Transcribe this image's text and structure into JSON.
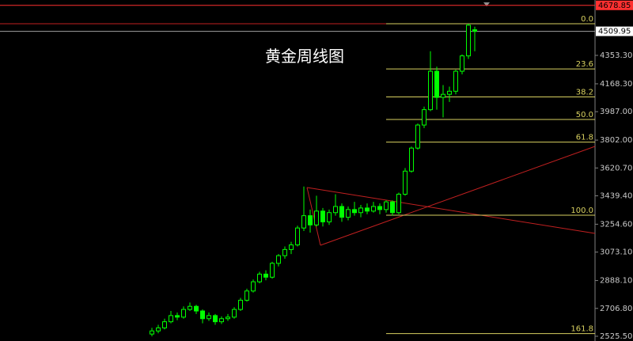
{
  "chart_data": {
    "type": "candlestick",
    "title": "黄金周线图",
    "ylim": [
      2494.6,
      4713.7
    ],
    "yticks": [
      {
        "value": 4353.3,
        "label": "4353.30"
      },
      {
        "value": 4168.3,
        "label": "4168.30"
      },
      {
        "value": 3987,
        "label": "3987.00"
      },
      {
        "value": 3802,
        "label": "3802.00"
      },
      {
        "value": 3620.7,
        "label": "3620.70"
      },
      {
        "value": 3439.4,
        "label": "3439.40"
      },
      {
        "value": 3254.6,
        "label": "3254.60"
      },
      {
        "value": 3073.1,
        "label": "3073.10"
      },
      {
        "value": 2888.1,
        "label": "2888.10"
      },
      {
        "value": 2706.8,
        "label": "2706.80"
      },
      {
        "value": 2525.5,
        "label": "2525.50"
      }
    ],
    "up_color": "#00ff00",
    "down_color": "#00ff00",
    "candles": [
      [
        2540,
        2580,
        2525,
        2560
      ],
      [
        2560,
        2600,
        2545,
        2580
      ],
      [
        2580,
        2640,
        2570,
        2620
      ],
      [
        2620,
        2690,
        2610,
        2660
      ],
      [
        2660,
        2680,
        2630,
        2650
      ],
      [
        2650,
        2720,
        2640,
        2700
      ],
      [
        2700,
        2745,
        2690,
        2720
      ],
      [
        2720,
        2730,
        2670,
        2690
      ],
      [
        2690,
        2700,
        2610,
        2640
      ],
      [
        2640,
        2680,
        2625,
        2660
      ],
      [
        2660,
        2670,
        2600,
        2620
      ],
      [
        2620,
        2655,
        2605,
        2640
      ],
      [
        2640,
        2670,
        2625,
        2650
      ],
      [
        2650,
        2715,
        2640,
        2700
      ],
      [
        2700,
        2775,
        2690,
        2760
      ],
      [
        2760,
        2835,
        2750,
        2820
      ],
      [
        2820,
        2895,
        2810,
        2880
      ],
      [
        2880,
        2945,
        2870,
        2930
      ],
      [
        2930,
        2955,
        2890,
        2910
      ],
      [
        2910,
        3010,
        2900,
        3000
      ],
      [
        3000,
        3060,
        2980,
        3050
      ],
      [
        3050,
        3110,
        3030,
        3090
      ],
      [
        3090,
        3140,
        3060,
        3120
      ],
      [
        3120,
        3245,
        3110,
        3230
      ],
      [
        3230,
        3500,
        3210,
        3310
      ],
      [
        3310,
        3350,
        3200,
        3250
      ],
      [
        3250,
        3440,
        3240,
        3340
      ],
      [
        3340,
        3360,
        3240,
        3270
      ],
      [
        3270,
        3350,
        3250,
        3330
      ],
      [
        3330,
        3450,
        3310,
        3370
      ],
      [
        3370,
        3390,
        3270,
        3300
      ],
      [
        3300,
        3370,
        3280,
        3350
      ],
      [
        3350,
        3400,
        3310,
        3330
      ],
      [
        3330,
        3380,
        3300,
        3360
      ],
      [
        3360,
        3390,
        3320,
        3340
      ],
      [
        3340,
        3400,
        3330,
        3370
      ],
      [
        3370,
        3390,
        3320,
        3350
      ],
      [
        3350,
        3410,
        3330,
        3400
      ],
      [
        3400,
        3410,
        3310,
        3330
      ],
      [
        3330,
        3460,
        3320,
        3450
      ],
      [
        3450,
        3620,
        3440,
        3600
      ],
      [
        3600,
        3760,
        3590,
        3750
      ],
      [
        3750,
        3910,
        3740,
        3900
      ],
      [
        3900,
        4020,
        3880,
        4000
      ],
      [
        4000,
        4380,
        3990,
        4250
      ],
      [
        4250,
        4280,
        4000,
        4080
      ],
      [
        4080,
        4160,
        3950,
        4100
      ],
      [
        4100,
        4150,
        4050,
        4120
      ],
      [
        4120,
        4260,
        4100,
        4250
      ],
      [
        4250,
        4360,
        4230,
        4350
      ],
      [
        4350,
        4559,
        4330,
        4550
      ],
      [
        4520,
        4540,
        4380,
        4509.95
      ]
    ],
    "fib_levels": [
      {
        "level": {
          "value": 0,
          "label": "0.0"
        },
        "price": 4559
      },
      {
        "level": {
          "value": 23.6,
          "label": "23.6"
        },
        "price": 4265
      },
      {
        "level": {
          "value": 38.2,
          "label": "38.2"
        },
        "price": 4083
      },
      {
        "level": {
          "value": 50,
          "label": "50.0"
        },
        "price": 3936
      },
      {
        "level": {
          "value": 61.8,
          "label": "61.8"
        },
        "price": 3789
      },
      {
        "level": {
          "value": 100,
          "label": "100.0"
        },
        "price": 3313
      },
      {
        "level": {
          "value": 161.8,
          "label": "161.8"
        },
        "price": 2543
      }
    ],
    "fib_color": "#d8d060",
    "price_labels": [
      {
        "value": 4678.85,
        "color": "#ff3030"
      },
      {
        "value": 4509.95,
        "color": "#ffffff"
      }
    ]
  }
}
